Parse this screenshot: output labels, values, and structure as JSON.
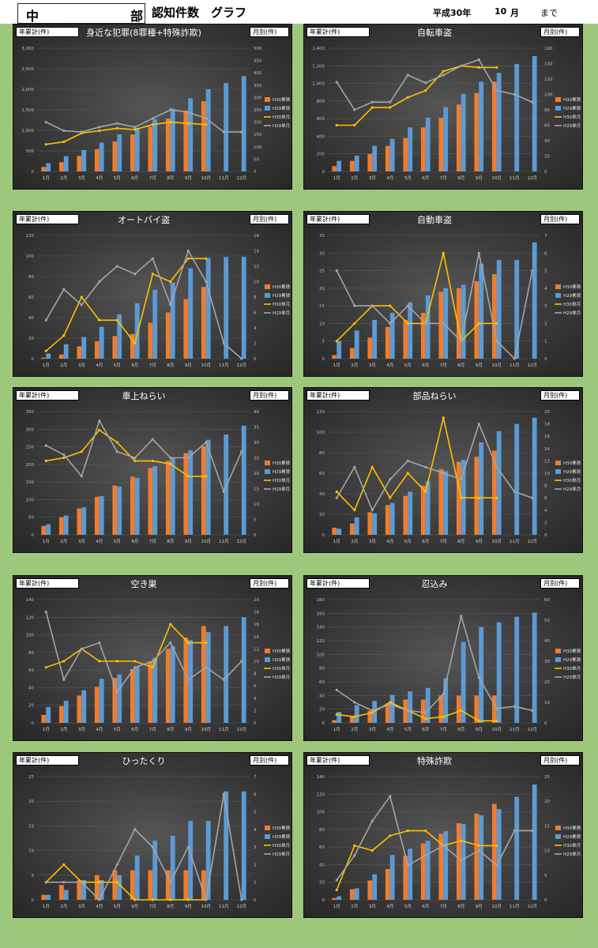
{
  "header": {
    "region_a": "中",
    "region_b": "部",
    "title": "認知件数　グラフ",
    "year": "平成30年",
    "month": "10",
    "month_unit": "月",
    "until": "まで"
  },
  "colors": {
    "h30_total": "#ed7d31",
    "h29_total": "#5b9bd5",
    "h30_month": "#ffc000",
    "h29_month": "#a5a5a5"
  },
  "common": {
    "left_axis_tag": "年累計(件)",
    "right_axis_tag": "月別(件)",
    "categories": [
      "1月",
      "2月",
      "3月",
      "4月",
      "5月",
      "6月",
      "7月",
      "8月",
      "9月",
      "10月",
      "11月",
      "12月"
    ],
    "legend": [
      "H30累積",
      "H29累積",
      "H30単月",
      "H29単月"
    ]
  },
  "chart_data": [
    {
      "type": "bar",
      "title": "身近な犯罪(8罪種+特殊詐欺)",
      "ylim_left": [
        0,
        3000
      ],
      "ylim_right": [
        0,
        500
      ],
      "left_ticks": [
        "0",
        "500",
        "1,000",
        "1,500",
        "2,000",
        "2,500",
        "3,000"
      ],
      "right_ticks": [
        "0",
        "50",
        "100",
        "150",
        "200",
        "250",
        "300",
        "350",
        "400",
        "450",
        "500"
      ],
      "series": [
        {
          "name": "H30累積",
          "kind": "bar",
          "values": [
            110,
            225,
            380,
            545,
            730,
            900,
            1090,
            1290,
            1480,
            1710
          ]
        },
        {
          "name": "H29累積",
          "kind": "bar",
          "values": [
            200,
            370,
            520,
            700,
            900,
            1060,
            1270,
            1530,
            1780,
            2000,
            2150,
            2320
          ]
        },
        {
          "name": "H30単月",
          "kind": "line",
          "values": [
            110,
            120,
            155,
            165,
            175,
            170,
            190,
            200,
            195,
            190
          ]
        },
        {
          "name": "H29単月",
          "kind": "line",
          "values": [
            200,
            165,
            160,
            180,
            195,
            180,
            215,
            250,
            240,
            215,
            160,
            160
          ]
        }
      ]
    },
    {
      "type": "bar",
      "title": "自転車盗",
      "ylim_left": [
        0,
        1400
      ],
      "ylim_right": [
        0,
        160
      ],
      "left_ticks": [
        "0",
        "200",
        "400",
        "600",
        "800",
        "1,000",
        "1,200",
        "1,400"
      ],
      "right_ticks": [
        "0",
        "20",
        "40",
        "60",
        "80",
        "100",
        "120",
        "140",
        "160"
      ],
      "series": [
        {
          "name": "H30累積",
          "kind": "bar",
          "values": [
            60,
            120,
            200,
            290,
            380,
            500,
            610,
            760,
            890,
            1020
          ]
        },
        {
          "name": "H29累積",
          "kind": "bar",
          "values": [
            120,
            180,
            290,
            370,
            500,
            610,
            730,
            880,
            1020,
            1120,
            1220,
            1310
          ]
        },
        {
          "name": "H30単月",
          "kind": "line",
          "values": [
            60,
            60,
            83,
            83,
            96,
            105,
            130,
            137,
            135,
            135
          ]
        },
        {
          "name": "H29単月",
          "kind": "line",
          "values": [
            116,
            80,
            90,
            90,
            125,
            115,
            125,
            137,
            145,
            105,
            100,
            90
          ]
        }
      ]
    },
    {
      "type": "bar",
      "title": "オートバイ盗",
      "ylim_left": [
        0,
        120
      ],
      "ylim_right": [
        0,
        16
      ],
      "left_ticks": [
        "0",
        "20",
        "40",
        "60",
        "80",
        "100",
        "120"
      ],
      "right_ticks": [
        "0",
        "2",
        "4",
        "6",
        "8",
        "10",
        "12",
        "14",
        "16"
      ],
      "series": [
        {
          "name": "H30累積",
          "kind": "bar",
          "values": [
            1,
            4,
            12,
            17,
            22,
            24,
            35,
            45,
            58,
            70
          ]
        },
        {
          "name": "H29累積",
          "kind": "bar",
          "values": [
            5,
            14,
            21,
            31,
            43,
            54,
            67,
            74,
            88,
            98,
            99,
            99
          ]
        },
        {
          "name": "H30単月",
          "kind": "line",
          "values": [
            1,
            3,
            8,
            5,
            5,
            2,
            11,
            10,
            13,
            13
          ]
        },
        {
          "name": "H29単月",
          "kind": "line",
          "values": [
            5,
            9,
            7,
            10,
            12,
            11,
            13,
            7,
            14,
            10,
            2,
            0
          ]
        }
      ]
    },
    {
      "type": "bar",
      "title": "自動車盗",
      "ylim_left": [
        0,
        35
      ],
      "ylim_right": [
        0,
        7
      ],
      "left_ticks": [
        "0",
        "5",
        "10",
        "15",
        "20",
        "25",
        "30",
        "35"
      ],
      "right_ticks": [
        "0",
        "1",
        "2",
        "3",
        "4",
        "5",
        "6",
        "7"
      ],
      "series": [
        {
          "name": "H30累積",
          "kind": "bar",
          "values": [
            1,
            3,
            6,
            9,
            11,
            13,
            19,
            20,
            22,
            24
          ]
        },
        {
          "name": "H29累積",
          "kind": "bar",
          "values": [
            5,
            8,
            11,
            13,
            16,
            18,
            20,
            21,
            27,
            28,
            28,
            33
          ]
        },
        {
          "name": "H30単月",
          "kind": "line",
          "values": [
            1,
            2,
            3,
            3,
            2,
            2,
            6,
            1,
            2,
            2
          ]
        },
        {
          "name": "H29単月",
          "kind": "line",
          "values": [
            5,
            3,
            3,
            2,
            3,
            2,
            2,
            1,
            6,
            1,
            0,
            5
          ]
        }
      ]
    },
    {
      "type": "bar",
      "title": "車上ねらい",
      "ylim_left": [
        0,
        350
      ],
      "ylim_right": [
        0,
        40
      ],
      "left_ticks": [
        "0",
        "50",
        "100",
        "150",
        "200",
        "250",
        "300",
        "350"
      ],
      "right_ticks": [
        "0",
        "5",
        "10",
        "15",
        "20",
        "25",
        "30",
        "35",
        "40"
      ],
      "series": [
        {
          "name": "H30累積",
          "kind": "bar",
          "values": [
            25,
            50,
            75,
            108,
            140,
            165,
            190,
            210,
            232,
            252
          ]
        },
        {
          "name": "H29累積",
          "kind": "bar",
          "values": [
            30,
            55,
            78,
            110,
            137,
            162,
            195,
            218,
            240,
            270,
            285,
            310
          ]
        },
        {
          "name": "H30単月",
          "kind": "line",
          "values": [
            24,
            25,
            27,
            34,
            30,
            24,
            24,
            23,
            19,
            19
          ]
        },
        {
          "name": "H29単月",
          "kind": "line",
          "values": [
            29,
            26,
            19,
            37,
            27,
            25,
            31,
            25,
            25,
            30,
            14,
            27
          ]
        }
      ]
    },
    {
      "type": "bar",
      "title": "部品ねらい",
      "ylim_left": [
        0,
        120
      ],
      "ylim_right": [
        0,
        20
      ],
      "left_ticks": [
        "0",
        "20",
        "40",
        "60",
        "80",
        "100",
        "120"
      ],
      "right_ticks": [
        "0",
        "2",
        "4",
        "6",
        "8",
        "10",
        "12",
        "14",
        "16",
        "18",
        "20"
      ],
      "series": [
        {
          "name": "H30累積",
          "kind": "bar",
          "values": [
            7,
            11,
            22,
            29,
            38,
            48,
            64,
            71,
            76,
            82
          ]
        },
        {
          "name": "H29累積",
          "kind": "bar",
          "values": [
            6,
            17,
            21,
            31,
            42,
            52,
            62,
            73,
            90,
            101,
            108,
            114
          ]
        },
        {
          "name": "H30単月",
          "kind": "line",
          "values": [
            7,
            4,
            11,
            6,
            10,
            7,
            19,
            6,
            6,
            6
          ]
        },
        {
          "name": "H29単月",
          "kind": "line",
          "values": [
            6,
            11,
            4,
            9,
            12,
            11,
            10,
            9,
            18,
            11,
            7,
            6
          ]
        }
      ]
    },
    {
      "type": "bar",
      "title": "空き巣",
      "ylim_left": [
        0,
        140
      ],
      "ylim_right": [
        0,
        20
      ],
      "left_ticks": [
        "0",
        "20",
        "40",
        "60",
        "80",
        "100",
        "120",
        "140"
      ],
      "right_ticks": [
        "0",
        "2",
        "4",
        "6",
        "8",
        "10",
        "12",
        "14",
        "16",
        "18",
        "20"
      ],
      "series": [
        {
          "name": "H30累積",
          "kind": "bar",
          "values": [
            9,
            19,
            31,
            41,
            51,
            61,
            70,
            84,
            97,
            110
          ]
        },
        {
          "name": "H29累積",
          "kind": "bar",
          "values": [
            18,
            25,
            37,
            50,
            55,
            64,
            74,
            87,
            94,
            103,
            110,
            120
          ]
        },
        {
          "name": "H30単月",
          "kind": "line",
          "values": [
            9,
            10,
            12,
            10,
            10,
            10,
            9,
            16,
            13,
            13
          ]
        },
        {
          "name": "H29単月",
          "kind": "line",
          "values": [
            18,
            7,
            12,
            13,
            5,
            9,
            10,
            13,
            7,
            9,
            7,
            10
          ]
        }
      ]
    },
    {
      "type": "bar",
      "title": "忍込み",
      "ylim_left": [
        0,
        180
      ],
      "ylim_right": [
        0,
        60
      ],
      "left_ticks": [
        "0",
        "20",
        "40",
        "60",
        "80",
        "100",
        "120",
        "140",
        "160",
        "180"
      ],
      "right_ticks": [
        "0",
        "10",
        "20",
        "30",
        "40",
        "50",
        "60"
      ],
      "series": [
        {
          "name": "H30累積",
          "kind": "bar",
          "values": [
            4,
            10,
            18,
            28,
            34,
            34,
            40,
            40,
            40,
            40
          ]
        },
        {
          "name": "H29累積",
          "kind": "bar",
          "values": [
            16,
            26,
            32,
            41,
            46,
            51,
            65,
            118,
            140,
            147,
            155,
            161
          ]
        },
        {
          "name": "H30単月",
          "kind": "line",
          "values": [
            4,
            3,
            5,
            10,
            6,
            2,
            3,
            6,
            1,
            1
          ]
        },
        {
          "name": "H29単月",
          "kind": "line",
          "values": [
            16,
            10,
            6,
            9,
            6,
            5,
            14,
            52,
            22,
            7,
            8,
            6
          ]
        }
      ]
    },
    {
      "type": "bar",
      "title": "ひったくり",
      "ylim_left": [
        0,
        25
      ],
      "ylim_right": [
        0,
        7
      ],
      "left_ticks": [
        "0",
        "5",
        "10",
        "15",
        "20",
        "25"
      ],
      "right_ticks": [
        "0",
        "1",
        "2",
        "3",
        "4",
        "5",
        "6",
        "7"
      ],
      "series": [
        {
          "name": "H30累積",
          "kind": "bar",
          "values": [
            1,
            3,
            4,
            5,
            6,
            6,
            6,
            6,
            6,
            6
          ]
        },
        {
          "name": "H29累積",
          "kind": "bar",
          "values": [
            1,
            2,
            4,
            4,
            5,
            9,
            12,
            13,
            16,
            16,
            22,
            22
          ]
        },
        {
          "name": "H30単月",
          "kind": "line",
          "values": [
            1,
            2,
            1,
            1,
            1,
            0,
            0,
            0,
            0,
            0
          ]
        },
        {
          "name": "H29単月",
          "kind": "line",
          "values": [
            1,
            1,
            1,
            0,
            2,
            4,
            3,
            1,
            3,
            0,
            6,
            0
          ]
        }
      ]
    },
    {
      "type": "bar",
      "title": "特殊詐欺",
      "ylim_left": [
        0,
        140
      ],
      "ylim_right": [
        0,
        25
      ],
      "left_ticks": [
        "0",
        "20",
        "40",
        "60",
        "80",
        "100",
        "120",
        "140"
      ],
      "right_ticks": [
        "0",
        "5",
        "10",
        "15",
        "20",
        "25"
      ],
      "series": [
        {
          "name": "H30累積",
          "kind": "bar",
          "values": [
            2,
            12,
            22,
            35,
            50,
            64,
            75,
            87,
            98,
            109
          ]
        },
        {
          "name": "H29累積",
          "kind": "bar",
          "values": [
            4,
            13,
            29,
            51,
            58,
            67,
            78,
            86,
            96,
            103,
            117,
            131
          ]
        },
        {
          "name": "H30単月",
          "kind": "line",
          "values": [
            2,
            11,
            10,
            13,
            14,
            14,
            11,
            12,
            11,
            11
          ]
        },
        {
          "name": "H29単月",
          "kind": "line",
          "values": [
            4,
            9,
            16,
            21,
            7,
            9,
            11,
            8,
            10,
            7,
            14,
            14
          ]
        }
      ]
    }
  ]
}
